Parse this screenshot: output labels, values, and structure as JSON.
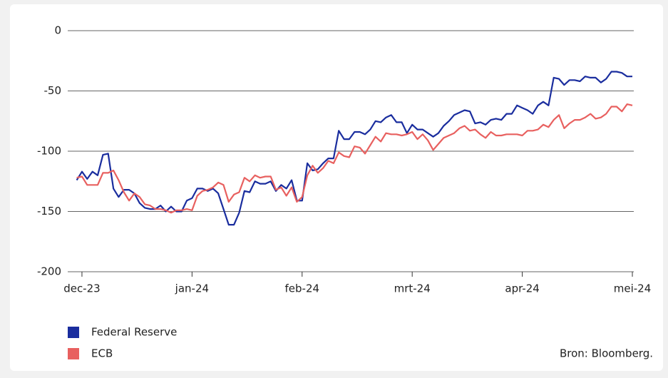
{
  "chart_data": {
    "type": "line",
    "categories": [
      null,
      "dec-23",
      null,
      null,
      null,
      null,
      null,
      null,
      null,
      null,
      null,
      null,
      null,
      null,
      null,
      null,
      null,
      null,
      null,
      null,
      null,
      null,
      "jan-24",
      null,
      null,
      null,
      null,
      null,
      null,
      null,
      null,
      null,
      null,
      null,
      null,
      null,
      null,
      null,
      null,
      null,
      null,
      null,
      null,
      "feb-24",
      null,
      null,
      null,
      null,
      null,
      null,
      null,
      null,
      null,
      null,
      null,
      null,
      null,
      null,
      null,
      null,
      null,
      null,
      null,
      null,
      "mrt-24",
      null,
      null,
      null,
      null,
      null,
      null,
      null,
      null,
      null,
      null,
      null,
      null,
      null,
      null,
      null,
      null,
      null,
      null,
      null,
      null,
      "apr-24",
      null,
      null,
      null,
      null,
      null,
      null,
      null,
      null,
      null,
      null,
      null,
      null,
      null,
      null,
      null,
      null,
      null,
      null,
      null,
      null,
      "mei-24"
    ],
    "series": [
      {
        "name": "Federal Reserve",
        "color": "#1a2d9e",
        "values": [
          -124,
          -117,
          -123,
          -117,
          -120,
          -103,
          -102,
          -131,
          -138,
          -132,
          -132,
          -135,
          -143,
          -147,
          -148,
          -148,
          -145,
          -150,
          -146,
          -150,
          -150,
          -141,
          -139,
          -131,
          -131,
          -133,
          -131,
          -135,
          -148,
          -161,
          -161,
          -151,
          -133,
          -134,
          -125,
          -127,
          -127,
          -125,
          -133,
          -128,
          -131,
          -124,
          -141,
          -141,
          -110,
          -116,
          -115,
          -110,
          -106,
          -106,
          -83,
          -90,
          -90,
          -84,
          -84,
          -86,
          -82,
          -75,
          -76,
          -72,
          -70,
          -76,
          -76,
          -85,
          -78,
          -82,
          -82,
          -85,
          -88,
          -85,
          -79,
          -75,
          -70,
          -68,
          -66,
          -67,
          -77,
          -76,
          -78,
          -74,
          -73,
          -74,
          -69,
          -69,
          -62,
          -64,
          -66,
          -69,
          -62,
          -59,
          -62,
          -39,
          -40,
          -45,
          -41,
          -41,
          -42,
          -38,
          -39,
          -39,
          -43,
          -40,
          -34,
          -34,
          -35,
          -38,
          -38
        ]
      },
      {
        "name": "ECB",
        "color": "#e8605f",
        "values": [
          -122,
          -121,
          -128,
          -128,
          -128,
          -118,
          -118,
          -116,
          -124,
          -134,
          -141,
          -135,
          -138,
          -144,
          -145,
          -148,
          -148,
          -149,
          -151,
          -149,
          -149,
          -148,
          -149,
          -137,
          -133,
          -132,
          -130,
          -126,
          -128,
          -142,
          -136,
          -134,
          -122,
          -125,
          -120,
          -122,
          -121,
          -121,
          -132,
          -130,
          -137,
          -130,
          -142,
          -138,
          -120,
          -112,
          -118,
          -114,
          -108,
          -110,
          -101,
          -104,
          -105,
          -96,
          -97,
          -102,
          -95,
          -88,
          -92,
          -85,
          -86,
          -86,
          -87,
          -86,
          -84,
          -90,
          -86,
          -91,
          -99,
          -94,
          -89,
          -87,
          -85,
          -81,
          -79,
          -83,
          -82,
          -86,
          -89,
          -84,
          -87,
          -87,
          -86,
          -86,
          -86,
          -87,
          -83,
          -83,
          -82,
          -78,
          -80,
          -74,
          -70,
          -81,
          -77,
          -74,
          -74,
          -72,
          -69,
          -73,
          -72,
          -69,
          -63,
          -63,
          -67,
          -61,
          -62
        ]
      }
    ],
    "ylim": [
      -200,
      0
    ],
    "yticks": [
      -200,
      -150,
      -100,
      -50,
      0
    ],
    "grid": true,
    "source": "Bron: Bloomberg."
  }
}
